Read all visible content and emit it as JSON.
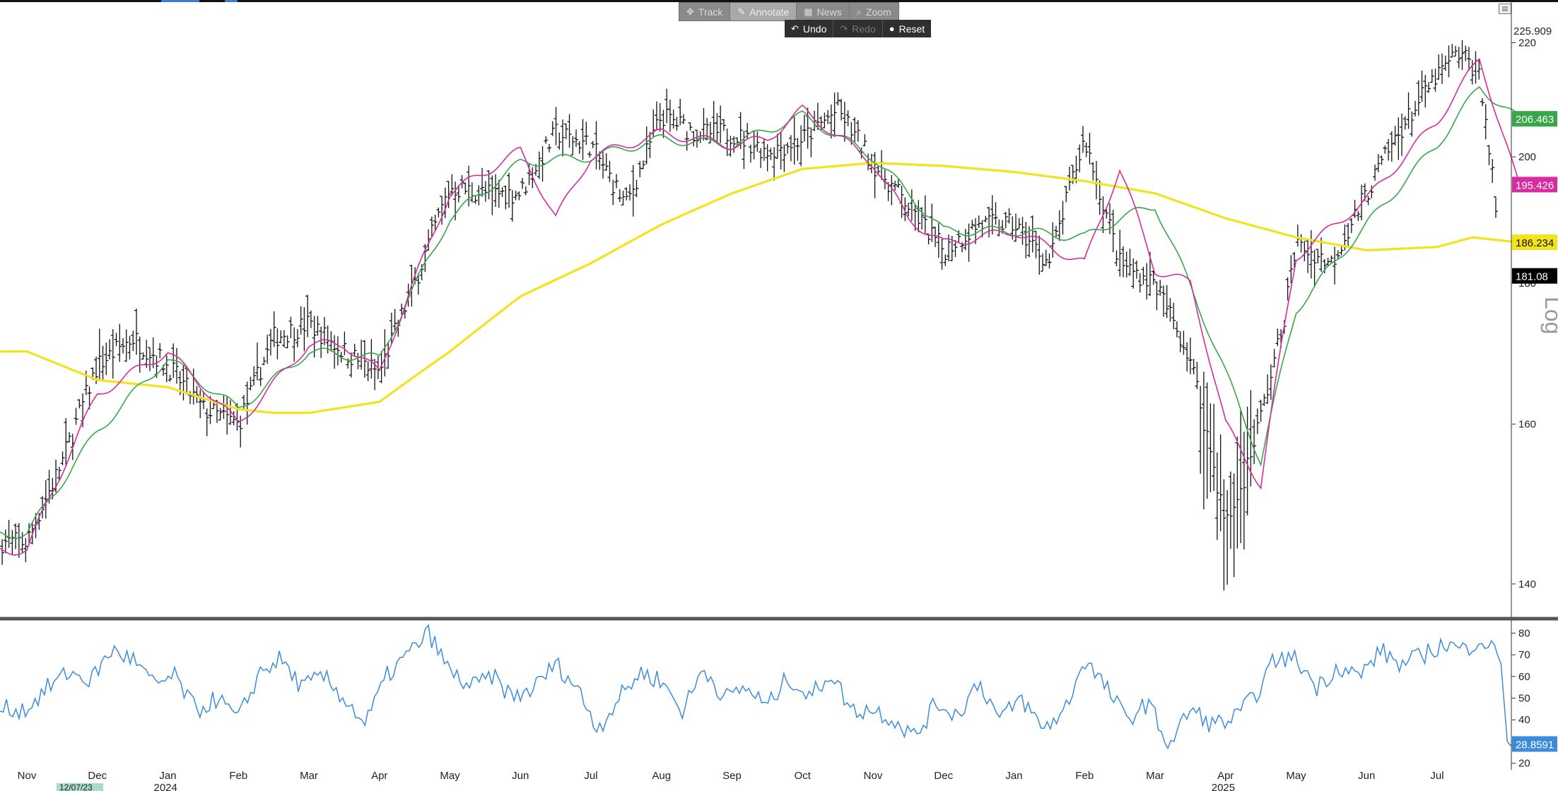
{
  "toolbar": {
    "track_label": "Track",
    "annotate_label": "Annotate",
    "news_label": "News",
    "zoom_label": "Zoom",
    "undo_label": "Undo",
    "redo_label": "Redo",
    "reset_label": "Reset"
  },
  "icons": {
    "track": "crosshair-icon",
    "annotate": "pencil-icon",
    "news": "news-icon",
    "zoom": "magnifier-icon",
    "undo": "undo-icon",
    "redo": "redo-icon",
    "reset": "reset-icon",
    "settings": "chart-settings-icon"
  },
  "colors": {
    "price_bar": "#111111",
    "ma_fast": "#d62ca0",
    "ma_mid": "#3aa64a",
    "ma_slow": "#f2e31c",
    "rsi": "#3d8bdc",
    "last_price_tag": "#000000",
    "axis": "#333333"
  },
  "chart_data": [
    {
      "type": "ohlc",
      "scale": "log",
      "ylim": [
        136,
        228
      ],
      "y_ticks": [
        140,
        160,
        180,
        200,
        220
      ],
      "y_tick_labels": [
        "140",
        "160",
        "180",
        "200",
        "220"
      ],
      "axis_top_label": "225.909",
      "scale_label": "Log",
      "x_labels": [
        "Nov",
        "Dec",
        "Jan",
        "Feb",
        "Mar",
        "Apr",
        "May",
        "Jun",
        "Jul",
        "Aug",
        "Sep",
        "Oct",
        "Nov",
        "Dec",
        "Jan",
        "Feb",
        "Mar",
        "Apr",
        "May",
        "Jun",
        "Jul"
      ],
      "year_labels": [
        "2024",
        "2025"
      ],
      "date_marker": "12/07/23",
      "price_path": {
        "months": [
          0,
          0.5,
          1,
          1.5,
          2,
          2.5,
          3,
          3.5,
          4,
          4.5,
          5,
          5.5,
          6,
          6.5,
          7,
          7.5,
          8,
          8.5,
          9,
          9.5,
          10,
          10.5,
          11,
          11.5,
          12,
          12.5,
          13,
          13.5,
          14,
          14.5,
          15,
          15.5,
          16,
          16.5,
          17,
          17.2,
          17.5,
          17.8,
          18,
          18.5,
          19,
          19.5,
          20,
          20.3,
          20.6,
          20.85,
          21.0,
          21.15
        ],
        "closes": [
          145,
          155,
          168,
          172,
          168,
          162,
          160,
          172,
          174,
          170,
          167,
          180,
          195,
          194,
          194,
          204,
          202,
          192,
          207,
          204,
          204,
          201,
          203,
          208,
          199,
          192,
          185,
          189,
          189,
          183,
          203,
          183,
          180,
          169,
          147,
          151,
          161,
          173,
          186,
          183,
          194,
          205,
          214,
          218,
          215,
          190,
          187,
          181
        ]
      },
      "series": [
        {
          "name": "",
          "role": "ma_fast",
          "months": [
            0,
            1,
            2,
            3,
            4,
            4.5,
            5,
            6,
            7,
            7.5,
            8,
            9,
            10,
            10.5,
            11,
            12,
            12.5,
            13,
            14,
            15,
            15.5,
            16,
            16.5,
            17,
            17.5,
            18,
            19,
            20,
            20.6,
            21.15
          ],
          "values": [
            144,
            164,
            170,
            160,
            171,
            171,
            167,
            194,
            201,
            190,
            200,
            204,
            202,
            203,
            208,
            199,
            190,
            186,
            188,
            183,
            198,
            182,
            180,
            160,
            152,
            184,
            193,
            206,
            217,
            195.426
          ]
        },
        {
          "name": "",
          "role": "ma_mid",
          "months": [
            0,
            1,
            2,
            3,
            4,
            5,
            6,
            7,
            8,
            9,
            10,
            11,
            12,
            13,
            14,
            15,
            15.5,
            16,
            17,
            17.5,
            18,
            19,
            20,
            20.6,
            21.15
          ],
          "values": [
            146,
            159,
            169,
            162,
            170,
            169,
            190,
            199,
            200,
            203,
            202,
            207,
            200,
            188,
            188,
            187,
            190,
            192,
            167,
            155,
            176,
            189,
            202,
            212,
            206.463
          ]
        },
        {
          "name": "",
          "role": "ma_slow",
          "months": [
            0,
            1,
            2,
            3,
            3.5,
            4,
            5,
            6,
            7,
            8,
            9,
            10,
            11,
            12,
            13,
            14,
            15,
            16,
            17,
            18,
            19,
            20,
            20.5,
            21.15
          ],
          "values": [
            170,
            166,
            165,
            162,
            161.5,
            161.5,
            163,
            170,
            178,
            183,
            189,
            194,
            198,
            199,
            198.5,
            197.5,
            196,
            194,
            190,
            187,
            185,
            185.5,
            187,
            186.234
          ]
        }
      ],
      "last_values": {
        "ma_mid": "206.463",
        "ma_fast": "195.426",
        "ma_slow": "186.234",
        "last_price": "181.08"
      }
    },
    {
      "type": "line",
      "ylim": [
        15,
        86
      ],
      "y_ticks": [
        20,
        30,
        40,
        50,
        60,
        70,
        80
      ],
      "y_tick_labels": [
        "20",
        "30",
        "40",
        "50",
        "60",
        "70",
        "80"
      ],
      "series": [
        {
          "name": "",
          "role": "rsi",
          "months": [
            0,
            0.3,
            0.6,
            0.9,
            1.2,
            1.5,
            1.8,
            2.1,
            2.4,
            2.7,
            3.0,
            3.3,
            3.6,
            3.9,
            4.2,
            4.5,
            4.8,
            5.1,
            5.4,
            5.7,
            6.0,
            6.3,
            6.6,
            6.9,
            7.2,
            7.5,
            7.8,
            8.1,
            8.4,
            8.7,
            9.0,
            9.3,
            9.6,
            9.9,
            10.2,
            10.5,
            10.8,
            11.1,
            11.4,
            11.7,
            12.0,
            12.3,
            12.6,
            12.9,
            13.2,
            13.5,
            13.8,
            14.1,
            14.4,
            14.7,
            15.0,
            15.3,
            15.6,
            15.9,
            16.2,
            16.5,
            16.8,
            17.1,
            17.4,
            17.7,
            18.0,
            18.3,
            18.6,
            18.9,
            19.2,
            19.5,
            19.8,
            20.1,
            20.4,
            20.6,
            20.8,
            20.9,
            21.0,
            21.15
          ],
          "values": [
            45,
            55,
            62,
            58,
            72,
            68,
            56,
            60,
            44,
            50,
            40,
            62,
            68,
            55,
            60,
            50,
            38,
            60,
            70,
            80,
            62,
            55,
            60,
            50,
            55,
            66,
            55,
            36,
            50,
            62,
            58,
            44,
            64,
            50,
            55,
            46,
            60,
            50,
            62,
            44,
            45,
            40,
            32,
            48,
            42,
            58,
            40,
            50,
            36,
            43,
            68,
            55,
            40,
            48,
            28,
            45,
            38,
            40,
            50,
            68,
            68,
            55,
            65,
            60,
            72,
            65,
            70,
            75,
            72,
            78,
            72,
            68,
            28,
            28.8591
          ]
        }
      ],
      "last_value_label": "28.8591"
    }
  ]
}
